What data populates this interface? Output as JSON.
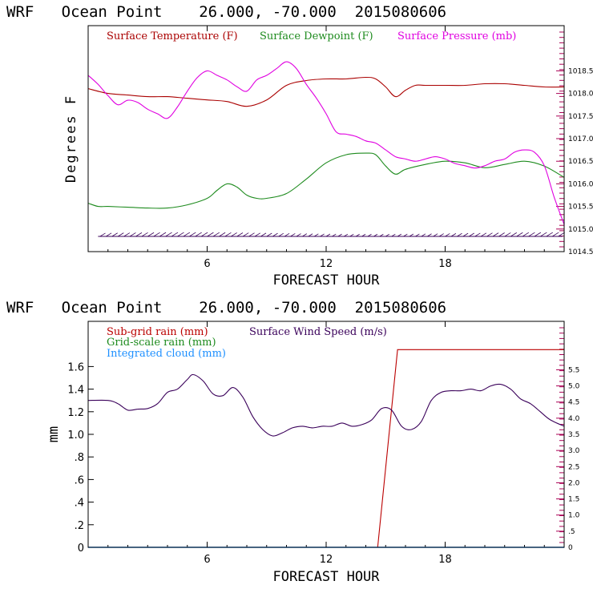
{
  "colors": {
    "temperature": "#aa0000",
    "dewpoint": "#1e8b1e",
    "pressure": "#e000e0",
    "subgrid_rain": "#bb0000",
    "grid_rain": "#1e8b1e",
    "cloud": "#1e90ff",
    "wind": "#3a005a",
    "tick_marks": "#aa0055",
    "barbs": "#3a005a"
  },
  "chart_data": [
    {
      "type": "line",
      "title": "WRF   Ocean Point    26.000, -70.000  2015080606",
      "xlabel": "FORECAST HOUR",
      "ylabel": "Degrees F",
      "xlim": [
        0,
        24
      ],
      "x_ticks": [
        6,
        12,
        18
      ],
      "right_ylim": [
        1014.5,
        1019.5
      ],
      "right_ticks": [
        "1014.5",
        "1015.0",
        "1015.5",
        "1016.0",
        "1016.5",
        "1017.0",
        "1017.5",
        "1018.0",
        "1018.5"
      ],
      "legend": [
        "Surface Temperature (F)",
        "Surface Dewpoint (F)",
        "Surface Pressure (mb)"
      ],
      "series": [
        {
          "name": "Surface Temperature (F)",
          "axis": "left",
          "x": [
            0,
            1,
            2,
            3,
            4,
            5,
            6,
            7,
            8,
            9,
            10,
            11,
            12,
            13,
            14,
            14.5,
            15,
            15.5,
            16,
            16.5,
            17,
            18,
            19,
            20,
            21,
            22,
            23,
            24
          ],
          "y": [
            84.1,
            83.8,
            83.7,
            83.6,
            83.6,
            83.5,
            83.4,
            83.3,
            83.0,
            83.4,
            84.3,
            84.6,
            84.7,
            84.7,
            84.8,
            84.7,
            84.2,
            83.6,
            84.0,
            84.3,
            84.3,
            84.3,
            84.3,
            84.4,
            84.4,
            84.3,
            84.2,
            84.2
          ]
        },
        {
          "name": "Surface Dewpoint (F)",
          "axis": "left",
          "x": [
            0,
            0.5,
            1,
            2,
            3,
            4,
            5,
            6,
            6.5,
            7,
            7.5,
            8,
            8.5,
            9,
            10,
            11,
            12,
            13,
            14,
            14.5,
            15,
            15.5,
            16,
            17,
            18,
            19,
            20,
            21,
            22,
            23,
            24
          ],
          "y": [
            77.0,
            76.8,
            76.8,
            76.75,
            76.7,
            76.7,
            76.9,
            77.3,
            77.8,
            78.2,
            78.0,
            77.5,
            77.3,
            77.3,
            77.6,
            78.5,
            79.5,
            80.0,
            80.1,
            80.0,
            79.3,
            78.8,
            79.1,
            79.4,
            79.6,
            79.5,
            79.2,
            79.4,
            79.6,
            79.3,
            78.6
          ]
        },
        {
          "name": "Surface Pressure (mb)",
          "axis": "right",
          "x": [
            0,
            0.5,
            1,
            1.5,
            2,
            2.5,
            3,
            3.5,
            4,
            4.5,
            5,
            5.5,
            6,
            6.5,
            7,
            7.5,
            8,
            8.5,
            9,
            9.5,
            10,
            10.5,
            11,
            11.5,
            12,
            12.5,
            13,
            13.5,
            14,
            14.5,
            15,
            15.5,
            16,
            16.5,
            17,
            17.5,
            18,
            18.5,
            19,
            19.5,
            20,
            20.5,
            21,
            21.5,
            22,
            22.5,
            23,
            23.5,
            24
          ],
          "y": [
            1018.4,
            1018.2,
            1017.95,
            1017.75,
            1017.85,
            1017.8,
            1017.65,
            1017.55,
            1017.45,
            1017.7,
            1018.05,
            1018.35,
            1018.5,
            1018.4,
            1018.3,
            1018.15,
            1018.05,
            1018.3,
            1018.4,
            1018.55,
            1018.7,
            1018.55,
            1018.2,
            1017.9,
            1017.55,
            1017.15,
            1017.1,
            1017.05,
            1016.95,
            1016.9,
            1016.75,
            1016.6,
            1016.55,
            1016.5,
            1016.55,
            1016.6,
            1016.55,
            1016.45,
            1016.4,
            1016.35,
            1016.4,
            1016.5,
            1016.55,
            1016.7,
            1016.75,
            1016.7,
            1016.4,
            1015.7,
            1015.1
          ]
        }
      ],
      "wind_barbs": true
    },
    {
      "type": "line",
      "title": "WRF   Ocean Point    26.000, -70.000  2015080606",
      "xlabel": "FORECAST HOUR",
      "ylabel": "mm",
      "xlim": [
        0,
        24
      ],
      "ylim": [
        0,
        2.0
      ],
      "x_ticks": [
        6,
        12,
        18
      ],
      "left_ticks": [
        "0",
        ".2",
        ".4",
        ".6",
        ".8",
        "1.0",
        "1.2",
        "1.4",
        "1.6"
      ],
      "right_ylim": [
        0,
        7.0
      ],
      "right_ticks": [
        "0",
        ".5",
        "1.0",
        "1.5",
        "2.0",
        "2.5",
        "3.0",
        "3.5",
        "4.0",
        "4.5",
        "5.0",
        "5.5"
      ],
      "legend": [
        "Sub-grid rain (mm)",
        "Grid-scale rain (mm)",
        "Integrated cloud (mm)",
        "Surface Wind Speed (m/s)"
      ],
      "series": [
        {
          "name": "Sub-grid rain (mm)",
          "axis": "left",
          "x": [
            0,
            14.6,
            15.6,
            24
          ],
          "y": [
            0,
            0,
            1.75,
            1.75
          ]
        },
        {
          "name": "Grid-scale rain (mm)",
          "axis": "left",
          "x": [
            0,
            24
          ],
          "y": [
            0,
            0
          ]
        },
        {
          "name": "Integrated cloud (mm)",
          "axis": "left",
          "x": [
            0,
            24
          ],
          "y": [
            0,
            0
          ]
        },
        {
          "name": "Surface Wind Speed (m/s)",
          "axis": "right",
          "x": [
            0,
            1,
            1.5,
            2,
            2.5,
            3,
            3.5,
            4,
            4.5,
            5,
            5.3,
            5.8,
            6.3,
            6.8,
            7.3,
            7.8,
            8.3,
            8.8,
            9.3,
            9.8,
            10.3,
            10.8,
            11.3,
            11.8,
            12.3,
            12.8,
            13.3,
            13.8,
            14.3,
            14.8,
            15.3,
            15.8,
            16.3,
            16.8,
            17.3,
            17.8,
            18.3,
            18.8,
            19.3,
            19.8,
            20.3,
            20.8,
            21.3,
            21.8,
            22.3,
            22.8,
            23.3,
            24
          ],
          "y": [
            4.55,
            4.55,
            4.45,
            4.25,
            4.28,
            4.3,
            4.45,
            4.8,
            4.9,
            5.2,
            5.35,
            5.15,
            4.75,
            4.7,
            4.95,
            4.65,
            4.05,
            3.65,
            3.45,
            3.55,
            3.7,
            3.75,
            3.7,
            3.75,
            3.75,
            3.85,
            3.75,
            3.8,
            3.95,
            4.3,
            4.25,
            3.75,
            3.65,
            3.9,
            4.55,
            4.8,
            4.85,
            4.85,
            4.9,
            4.85,
            5.0,
            5.05,
            4.9,
            4.6,
            4.45,
            4.2,
            3.95,
            3.75
          ]
        }
      ]
    }
  ]
}
